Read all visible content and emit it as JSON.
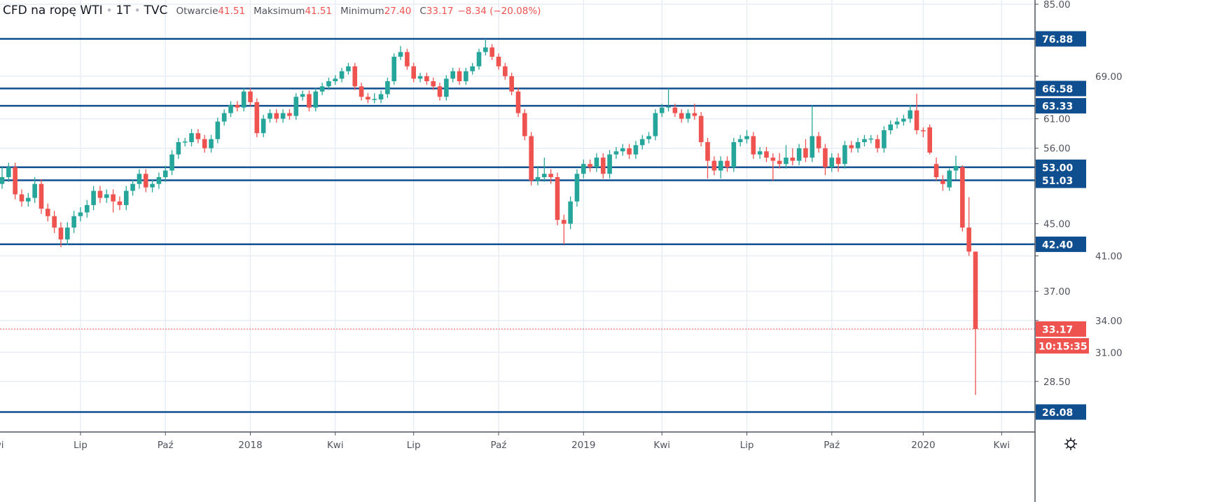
{
  "header": {
    "symbol": "CFD na ropę WTI",
    "interval": "1T",
    "exchange": "TVC",
    "open_label": "Otwarcie",
    "open_value": "41.51",
    "high_label": "Maksimum",
    "high_value": "41.51",
    "low_label": "Minimum",
    "low_value": "27.40",
    "close_label": "C",
    "close_value": "33.17",
    "change": "−8.34 (−20.08%)"
  },
  "colors": {
    "up": "#26a69a",
    "down": "#ef5350",
    "level": "#0f4e8f",
    "grid": "#e8eef4",
    "text": "#50535e"
  },
  "chart_data": {
    "type": "candlestick",
    "scale": "log",
    "ylim": [
      26.08,
      85.0
    ],
    "y_ticks": [
      "85.00",
      "69.00",
      "61.00",
      "56.00",
      "45.00",
      "41.00",
      "37.00",
      "34.00",
      "31.00",
      "28.50"
    ],
    "x_ticks": [
      {
        "label": "Kwi",
        "index": -1
      },
      {
        "label": "Lip",
        "index": 12
      },
      {
        "label": "Paź",
        "index": 25
      },
      {
        "label": "2018",
        "index": 38
      },
      {
        "label": "Kwi",
        "index": 51
      },
      {
        "label": "Lip",
        "index": 63
      },
      {
        "label": "Paź",
        "index": 76
      },
      {
        "label": "2019",
        "index": 89
      },
      {
        "label": "Kwi",
        "index": 101
      },
      {
        "label": "Lip",
        "index": 114
      },
      {
        "label": "Paź",
        "index": 127
      },
      {
        "label": "2020",
        "index": 141
      },
      {
        "label": "Kwi",
        "index": 153
      }
    ],
    "levels": [
      "76.88",
      "66.58",
      "63.33",
      "53.00",
      "51.03",
      "42.40",
      "26.08"
    ],
    "last_price": "33.17",
    "countdown": "10:15:35",
    "candles": [
      [
        50.5,
        53.2,
        49.8,
        51.5
      ],
      [
        51.5,
        53.7,
        50.8,
        53
      ],
      [
        53,
        53.7,
        48.3,
        49
      ],
      [
        49,
        49.7,
        47.3,
        48
      ],
      [
        48,
        49.2,
        47.3,
        48.5
      ],
      [
        48.5,
        51.5,
        47.8,
        50.5
      ],
      [
        50.5,
        51.2,
        46.3,
        47
      ],
      [
        47,
        47.7,
        45.3,
        46
      ],
      [
        46,
        46.7,
        43.8,
        44.5
      ],
      [
        44.5,
        45.2,
        42.05,
        43
      ],
      [
        43,
        45.2,
        42.3,
        44.5
      ],
      [
        44.5,
        46.7,
        43.8,
        46
      ],
      [
        46,
        47.2,
        45.3,
        46.5
      ],
      [
        46.5,
        48.2,
        45.8,
        47.5
      ],
      [
        47.5,
        50.2,
        46.8,
        49.5
      ],
      [
        49.5,
        50.2,
        47.8,
        48.5
      ],
      [
        48.5,
        49.7,
        47.8,
        49
      ],
      [
        49,
        49.7,
        46.5,
        48
      ],
      [
        48,
        48.7,
        46.8,
        47.5
      ],
      [
        47.5,
        50.2,
        46.8,
        49.5
      ],
      [
        49.5,
        51.2,
        48.8,
        50.5
      ],
      [
        50.5,
        52.7,
        49.8,
        52
      ],
      [
        52,
        52.7,
        49.3,
        50
      ],
      [
        50,
        51.2,
        49.3,
        50.5
      ],
      [
        50.5,
        52.2,
        49.8,
        51.5
      ],
      [
        51.5,
        53.2,
        50.8,
        52.5
      ],
      [
        52.5,
        55.7,
        51.8,
        55
      ],
      [
        55,
        57.7,
        54.3,
        57
      ],
      [
        57,
        57.7,
        56.3,
        57.1
      ],
      [
        57,
        59.2,
        56.3,
        58.5
      ],
      [
        58.5,
        59.2,
        56.8,
        57.5
      ],
      [
        57.5,
        58.2,
        55.3,
        56
      ],
      [
        56,
        58.2,
        55.3,
        57.5
      ],
      [
        57.5,
        61.2,
        56.8,
        60.5
      ],
      [
        60.5,
        62.7,
        59.8,
        62
      ],
      [
        62,
        64.2,
        61.3,
        63.5
      ],
      [
        63.5,
        64.2,
        62.3,
        63
      ],
      [
        63,
        66.7,
        62.3,
        66
      ],
      [
        66,
        66.7,
        63.3,
        64
      ],
      [
        64,
        64.7,
        57.8,
        58.5
      ],
      [
        58.5,
        61.7,
        57.8,
        61
      ],
      [
        61,
        62.7,
        60.3,
        62
      ],
      [
        62,
        62.7,
        60.3,
        61
      ],
      [
        61,
        62.7,
        60.3,
        62
      ],
      [
        62,
        62.7,
        60.8,
        61.5
      ],
      [
        61.5,
        65.7,
        60.8,
        65
      ],
      [
        65,
        66.2,
        64.3,
        65.5
      ],
      [
        65.5,
        66.2,
        62.3,
        63
      ],
      [
        63,
        66.7,
        62.3,
        66
      ],
      [
        66,
        67.7,
        65.3,
        67
      ],
      [
        67,
        68.7,
        66.3,
        68
      ],
      [
        68,
        69.2,
        67.3,
        68.5
      ],
      [
        68.5,
        70.7,
        67.8,
        70
      ],
      [
        70,
        71.7,
        69.3,
        71
      ],
      [
        71,
        71.7,
        66.3,
        67
      ],
      [
        67,
        67.7,
        64.3,
        65
      ],
      [
        65,
        65.7,
        63.8,
        64.5
      ],
      [
        64.5,
        65.7,
        63.8,
        64.6
      ],
      [
        64.5,
        66.2,
        63.8,
        65.5
      ],
      [
        65.5,
        68.7,
        64.8,
        68
      ],
      [
        68,
        73.7,
        67.3,
        73
      ],
      [
        73,
        75.3,
        72.3,
        74
      ],
      [
        74,
        74.7,
        70.3,
        71
      ],
      [
        71,
        71.7,
        67.8,
        68.5
      ],
      [
        68.5,
        69.7,
        67.8,
        69
      ],
      [
        69,
        69.7,
        67.3,
        68
      ],
      [
        68,
        68.7,
        66.3,
        67
      ],
      [
        67,
        67.7,
        64.3,
        65
      ],
      [
        65,
        69.2,
        64.3,
        68.5
      ],
      [
        68.5,
        70.7,
        67.8,
        70
      ],
      [
        70,
        70.7,
        67.3,
        68
      ],
      [
        68,
        70.7,
        67.3,
        70
      ],
      [
        70,
        71.7,
        69.3,
        71
      ],
      [
        71,
        74.7,
        70.3,
        74
      ],
      [
        74,
        76.88,
        73.3,
        75
      ],
      [
        75,
        75.7,
        72.3,
        73
      ],
      [
        73,
        73.7,
        70.3,
        71
      ],
      [
        71,
        71.7,
        68.3,
        69
      ],
      [
        69,
        69.7,
        65.3,
        66
      ],
      [
        66,
        66.7,
        61.3,
        62
      ],
      [
        62,
        62.7,
        57.3,
        58
      ],
      [
        58,
        58.7,
        50.3,
        51
      ],
      [
        51,
        53.2,
        50.3,
        51.5
      ],
      [
        51.5,
        54.5,
        50.8,
        52
      ],
      [
        52,
        52.7,
        50.5,
        51.5
      ],
      [
        51.5,
        52.2,
        44.8,
        45.5
      ],
      [
        45.5,
        46.2,
        42.4,
        45
      ],
      [
        45,
        48.7,
        44.3,
        48
      ],
      [
        48,
        52.7,
        47.3,
        52
      ],
      [
        52,
        54.2,
        51.3,
        53.5
      ],
      [
        53.5,
        54.2,
        52.3,
        53
      ],
      [
        53,
        55.2,
        52.3,
        54.5
      ],
      [
        54.5,
        55.2,
        51.3,
        52
      ],
      [
        52,
        55.7,
        51.3,
        55
      ],
      [
        55,
        56.2,
        54.3,
        55.5
      ],
      [
        55.5,
        56.7,
        54.8,
        56
      ],
      [
        56,
        56.7,
        54.3,
        55
      ],
      [
        55,
        57.2,
        54.3,
        56.5
      ],
      [
        56.5,
        58.2,
        55.8,
        57.5
      ],
      [
        57.5,
        58.7,
        56.8,
        58
      ],
      [
        58,
        62.7,
        57.3,
        62
      ],
      [
        62,
        63.7,
        61.3,
        63
      ],
      [
        63,
        66.6,
        62.3,
        63.2
      ],
      [
        63,
        63.7,
        61.3,
        62
      ],
      [
        62,
        62.7,
        60.3,
        61
      ],
      [
        61,
        62.7,
        60.3,
        62
      ],
      [
        62,
        63.7,
        60.8,
        61.5
      ],
      [
        61.5,
        62.2,
        56.3,
        57
      ],
      [
        57,
        57.7,
        51.3,
        54
      ],
      [
        54,
        54.7,
        51.8,
        52.5
      ],
      [
        52.5,
        54.7,
        51.3,
        54
      ],
      [
        54,
        54.7,
        52.3,
        53
      ],
      [
        53,
        57.7,
        52.3,
        57
      ],
      [
        57,
        58.2,
        56.3,
        57.5
      ],
      [
        57.5,
        59,
        56.8,
        58
      ],
      [
        58,
        58.7,
        54.3,
        55
      ],
      [
        55,
        56.2,
        54.3,
        55.5
      ],
      [
        55.5,
        56.2,
        53.8,
        54.5
      ],
      [
        54.5,
        55.2,
        51,
        54
      ],
      [
        54,
        55.2,
        52.8,
        53.5
      ],
      [
        53.5,
        56.5,
        52.8,
        54.5
      ],
      [
        54.5,
        56,
        53.3,
        54
      ],
      [
        54,
        56.7,
        53.3,
        56
      ],
      [
        56,
        57.5,
        53.8,
        54.5
      ],
      [
        54.5,
        63.4,
        53.8,
        58
      ],
      [
        58,
        58.7,
        55.3,
        56
      ],
      [
        56,
        56.7,
        51.8,
        53
      ],
      [
        53,
        55.2,
        52.3,
        54.5
      ],
      [
        54.5,
        55.2,
        52.3,
        53.5
      ],
      [
        53.5,
        57.2,
        52.8,
        56.5
      ],
      [
        56.5,
        57.2,
        55.3,
        56
      ],
      [
        56,
        57.7,
        55.3,
        57
      ],
      [
        57,
        58.2,
        56.3,
        57.5
      ],
      [
        57.5,
        58.2,
        56.8,
        57.6
      ],
      [
        57.5,
        58.2,
        55.3,
        56
      ],
      [
        56,
        59.7,
        55.3,
        59
      ],
      [
        59,
        60.7,
        58.3,
        60
      ],
      [
        60,
        61.2,
        59.3,
        60.5
      ],
      [
        60.5,
        61.7,
        59.8,
        61
      ],
      [
        61,
        63.5,
        60.3,
        62.5
      ],
      [
        62.5,
        65.6,
        58.3,
        59
      ],
      [
        59,
        59.5,
        57.8,
        58.9
      ],
      [
        59.5,
        60,
        55,
        55.3
      ],
      [
        53.5,
        54.5,
        51,
        51.5
      ],
      [
        51,
        51.8,
        49.5,
        50.5
      ],
      [
        50,
        52.8,
        49.5,
        52.5
      ],
      [
        52.5,
        54.8,
        51.2,
        53.2
      ],
      [
        53,
        53.3,
        44,
        44.5
      ],
      [
        44.5,
        48.6,
        41,
        41.51
      ],
      [
        41.51,
        41.51,
        27.4,
        33.17
      ]
    ]
  }
}
